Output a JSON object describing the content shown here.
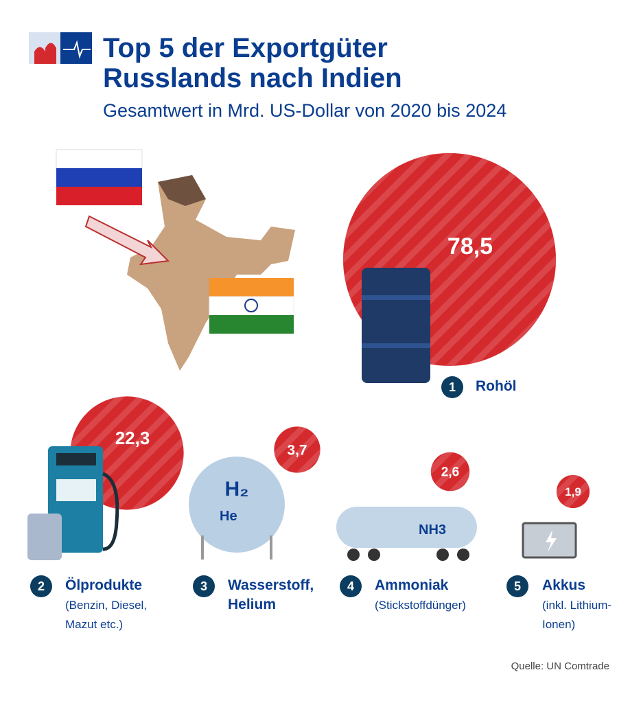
{
  "chart_data": {
    "type": "bubble",
    "title": "Top 5 der Exportgüter Russlands nach Indien",
    "subtitle": "Gesamtwert in Mrd. US-Dollar von 2020 bis 2024",
    "ranks": [
      "1",
      "2",
      "3",
      "4",
      "5"
    ],
    "categories": [
      "Rohöl",
      "Ölprodukte",
      "Wasserstoff, Helium",
      "Ammoniak",
      "Akkus"
    ],
    "notes": [
      null,
      "(Benzin, Diesel, Mazut etc.)",
      null,
      "(Stickstoffdünger)",
      "(inkl. Lithium-Ionen)"
    ],
    "values": [
      78.5,
      22.3,
      3.7,
      2.6,
      1.9
    ],
    "value_labels": [
      "78,5",
      "22,3",
      "3,7",
      "2,6",
      "1,9"
    ],
    "color": "#d42a2e",
    "source": "Quelle: UN Comtrade"
  }
}
